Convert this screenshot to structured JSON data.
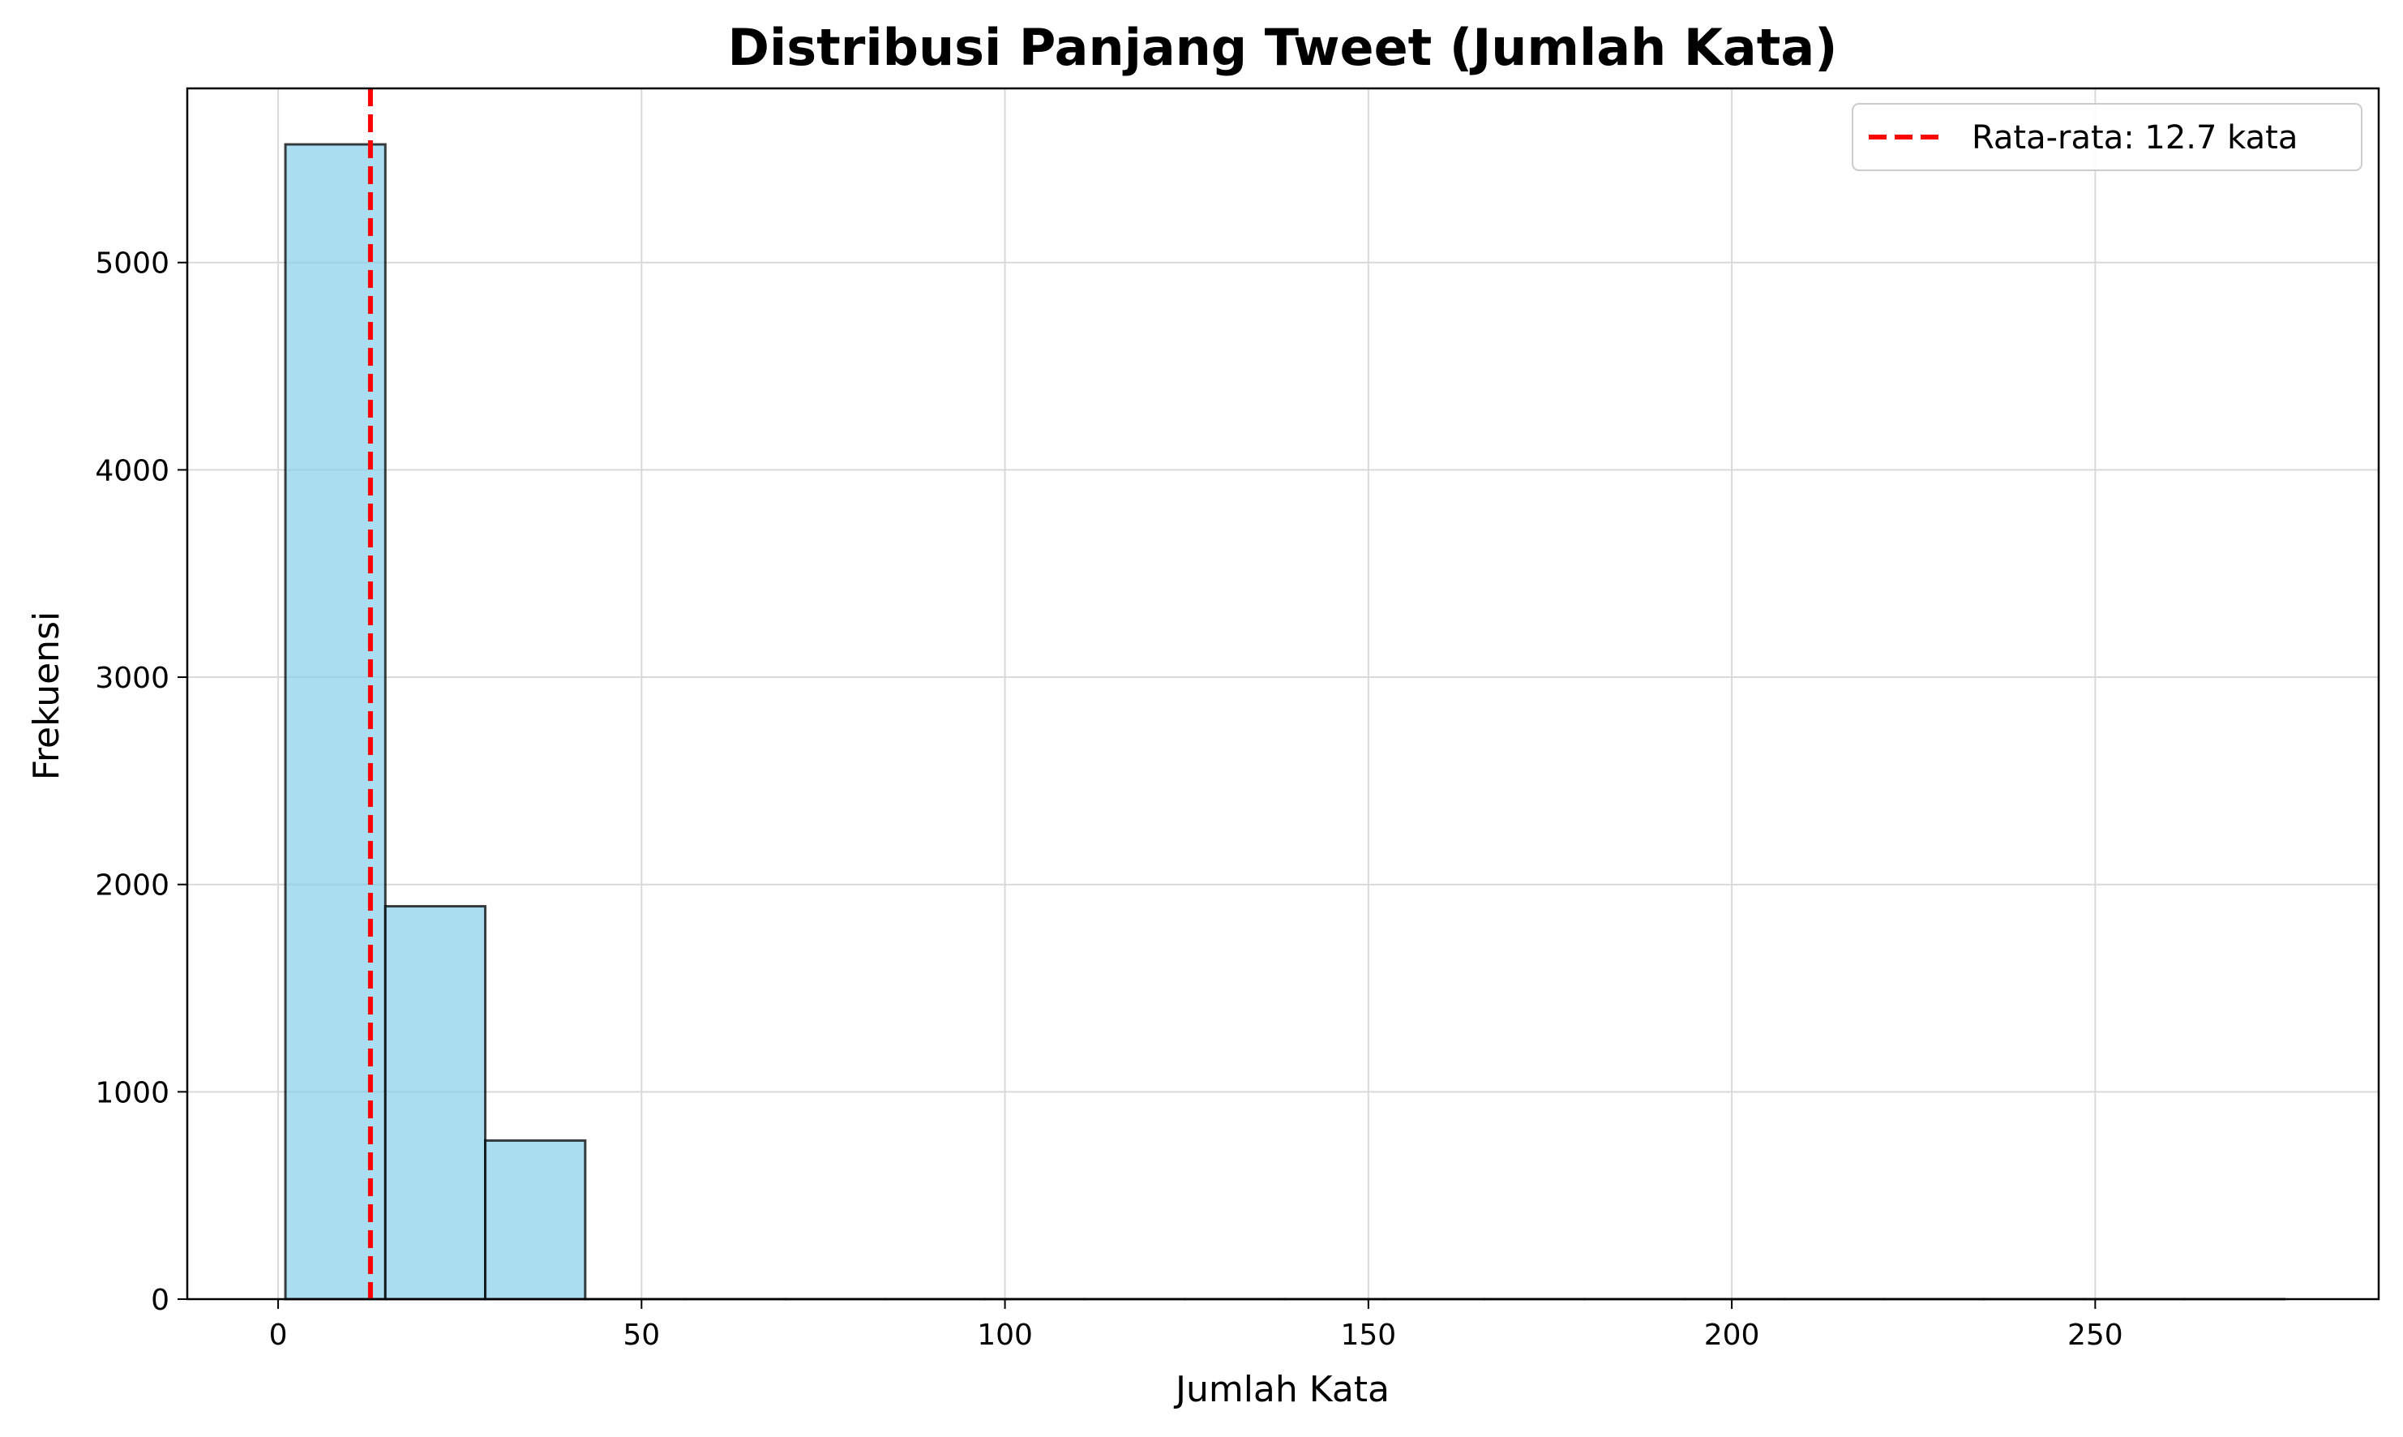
{
  "chart_data": {
    "type": "bar",
    "subtype": "histogram",
    "title": "Distribusi Panjang Tweet (Jumlah Kata)",
    "xlabel": "Jumlah Kata",
    "ylabel": "Frekuensi",
    "xlim": [
      -12.5,
      289
    ],
    "ylim": [
      0,
      5840
    ],
    "xticks": [
      0,
      50,
      100,
      150,
      200,
      250
    ],
    "yticks": [
      0,
      1000,
      2000,
      3000,
      4000,
      5000
    ],
    "grid": true,
    "bin_width": 13.75,
    "bins": [
      {
        "start": 1,
        "end": 14.75,
        "value": 5570
      },
      {
        "start": 14.75,
        "end": 28.5,
        "value": 1895
      },
      {
        "start": 28.5,
        "end": 42.25,
        "value": 765
      },
      {
        "start": 42.25,
        "end": 56,
        "value": 0
      },
      {
        "start": 56,
        "end": 69.75,
        "value": 0
      },
      {
        "start": 69.75,
        "end": 83.5,
        "value": 0
      },
      {
        "start": 83.5,
        "end": 97.25,
        "value": 0
      },
      {
        "start": 97.25,
        "end": 111,
        "value": 0
      },
      {
        "start": 111,
        "end": 124.75,
        "value": 0
      },
      {
        "start": 124.75,
        "end": 138.5,
        "value": 0
      },
      {
        "start": 138.5,
        "end": 152.25,
        "value": 0
      },
      {
        "start": 152.25,
        "end": 166,
        "value": 0
      },
      {
        "start": 166,
        "end": 179.75,
        "value": 0
      },
      {
        "start": 179.75,
        "end": 193.5,
        "value": 0
      },
      {
        "start": 193.5,
        "end": 207.25,
        "value": 0
      },
      {
        "start": 207.25,
        "end": 221,
        "value": 0
      },
      {
        "start": 221,
        "end": 234.75,
        "value": 0
      },
      {
        "start": 234.75,
        "end": 248.5,
        "value": 0
      },
      {
        "start": 248.5,
        "end": 262.25,
        "value": 0
      },
      {
        "start": 262.25,
        "end": 276,
        "value": 0
      }
    ],
    "mean_line": {
      "x": 12.7,
      "color": "#ff0000",
      "style": "dashed"
    },
    "legend": {
      "position": "top-right",
      "entries": [
        "Rata-rata: 12.7 kata"
      ]
    },
    "colors": {
      "bar_fill": "#87ceeb",
      "bar_edge": "#000000",
      "mean_line": "#ff0000",
      "grid": "#d9d9d9"
    }
  }
}
